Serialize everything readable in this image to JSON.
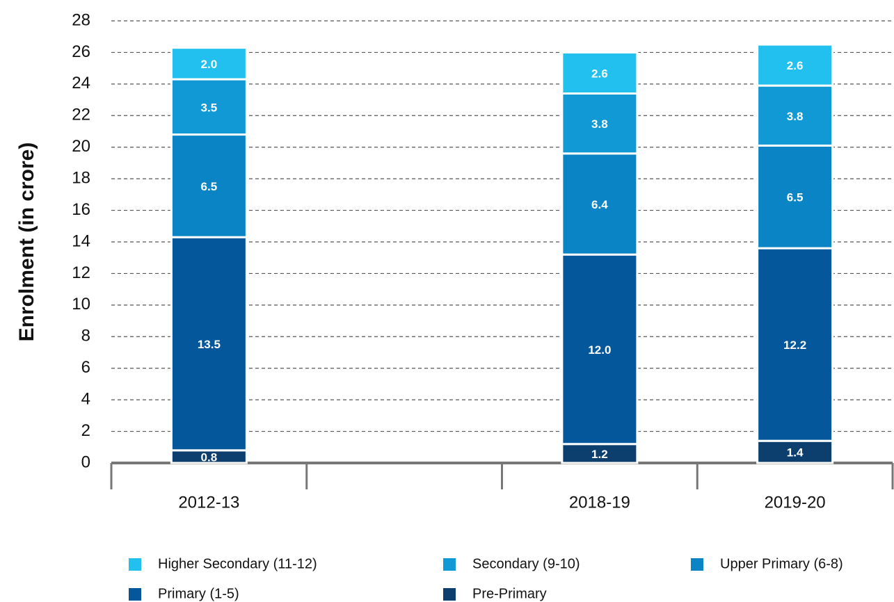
{
  "chart_data": {
    "type": "stacked_bar",
    "y_label": "Enrolment (in crore)",
    "categories": [
      "2012-13",
      null,
      "2018-19",
      "2019-20"
    ],
    "series": [
      {
        "name": "Higher Secondary (11-12)",
        "color": "#22c0ee",
        "values": [
          2.0,
          null,
          2.6,
          2.6
        ],
        "value_labels": [
          "2.0",
          null,
          "2.6",
          "2.6"
        ]
      },
      {
        "name": "Secondary (9-10)",
        "color": "#1199d6",
        "values": [
          3.5,
          null,
          3.8,
          3.8
        ],
        "value_labels": [
          "3.5",
          null,
          "3.8",
          "3.8"
        ]
      },
      {
        "name": "Upper Primary (6-8)",
        "color": "#0a84c4",
        "values": [
          6.5,
          null,
          6.4,
          6.5
        ],
        "value_labels": [
          "6.5",
          null,
          "6.4",
          "6.5"
        ]
      },
      {
        "name": "Primary (1-5)",
        "color": "#04579a",
        "values": [
          13.5,
          null,
          12.0,
          12.2
        ],
        "value_labels": [
          "13.5",
          null,
          "12.0",
          "12.2"
        ]
      },
      {
        "name": "Pre-Primary",
        "color": "#0c3f6e",
        "values": [
          0.8,
          null,
          1.2,
          1.4
        ],
        "value_labels": [
          "0.8",
          null,
          "1.2",
          "1.4"
        ]
      }
    ],
    "ylim": [
      0,
      28
    ],
    "yticks": [
      0,
      2,
      4,
      6,
      8,
      10,
      12,
      14,
      16,
      18,
      20,
      22,
      24,
      26,
      28
    ],
    "grid": true
  }
}
